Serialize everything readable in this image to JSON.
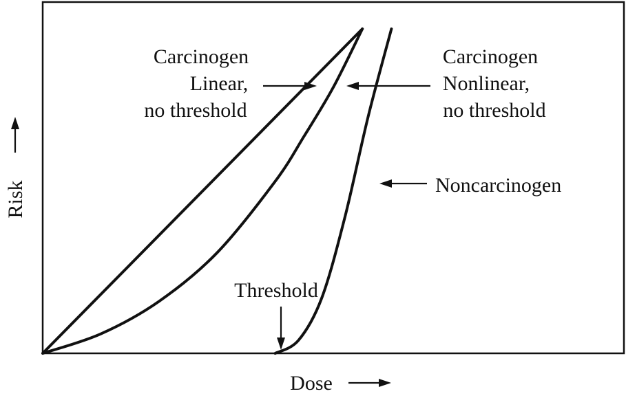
{
  "chart_data": {
    "type": "line",
    "xlabel": "Dose",
    "ylabel": "Risk",
    "xlim": [
      0,
      1
    ],
    "ylim": [
      0,
      1
    ],
    "grid": false,
    "series": [
      {
        "name": "Carcinogen Linear, no threshold",
        "x": [
          0.0,
          0.55
        ],
        "y": [
          0.0,
          1.0
        ]
      },
      {
        "name": "Carcinogen Nonlinear, no threshold",
        "x": [
          0.0,
          0.1,
          0.2,
          0.3,
          0.4,
          0.45,
          0.5,
          0.55
        ],
        "y": [
          0.0,
          0.06,
          0.16,
          0.31,
          0.53,
          0.67,
          0.82,
          1.0
        ]
      },
      {
        "name": "Noncarcinogen",
        "x": [
          0.4,
          0.44,
          0.48,
          0.52,
          0.56,
          0.6
        ],
        "y": [
          0.0,
          0.04,
          0.17,
          0.42,
          0.73,
          1.0
        ]
      }
    ],
    "annotations": {
      "linear": [
        "Carcinogen",
        "Linear,",
        "no threshold"
      ],
      "nonlinear": [
        "Carcinogen",
        "Nonlinear,",
        "no threshold"
      ],
      "noncarcinogen": "Noncarcinogen",
      "threshold": "Threshold"
    }
  },
  "colors": {
    "ink": "#111111",
    "background": "#ffffff"
  }
}
